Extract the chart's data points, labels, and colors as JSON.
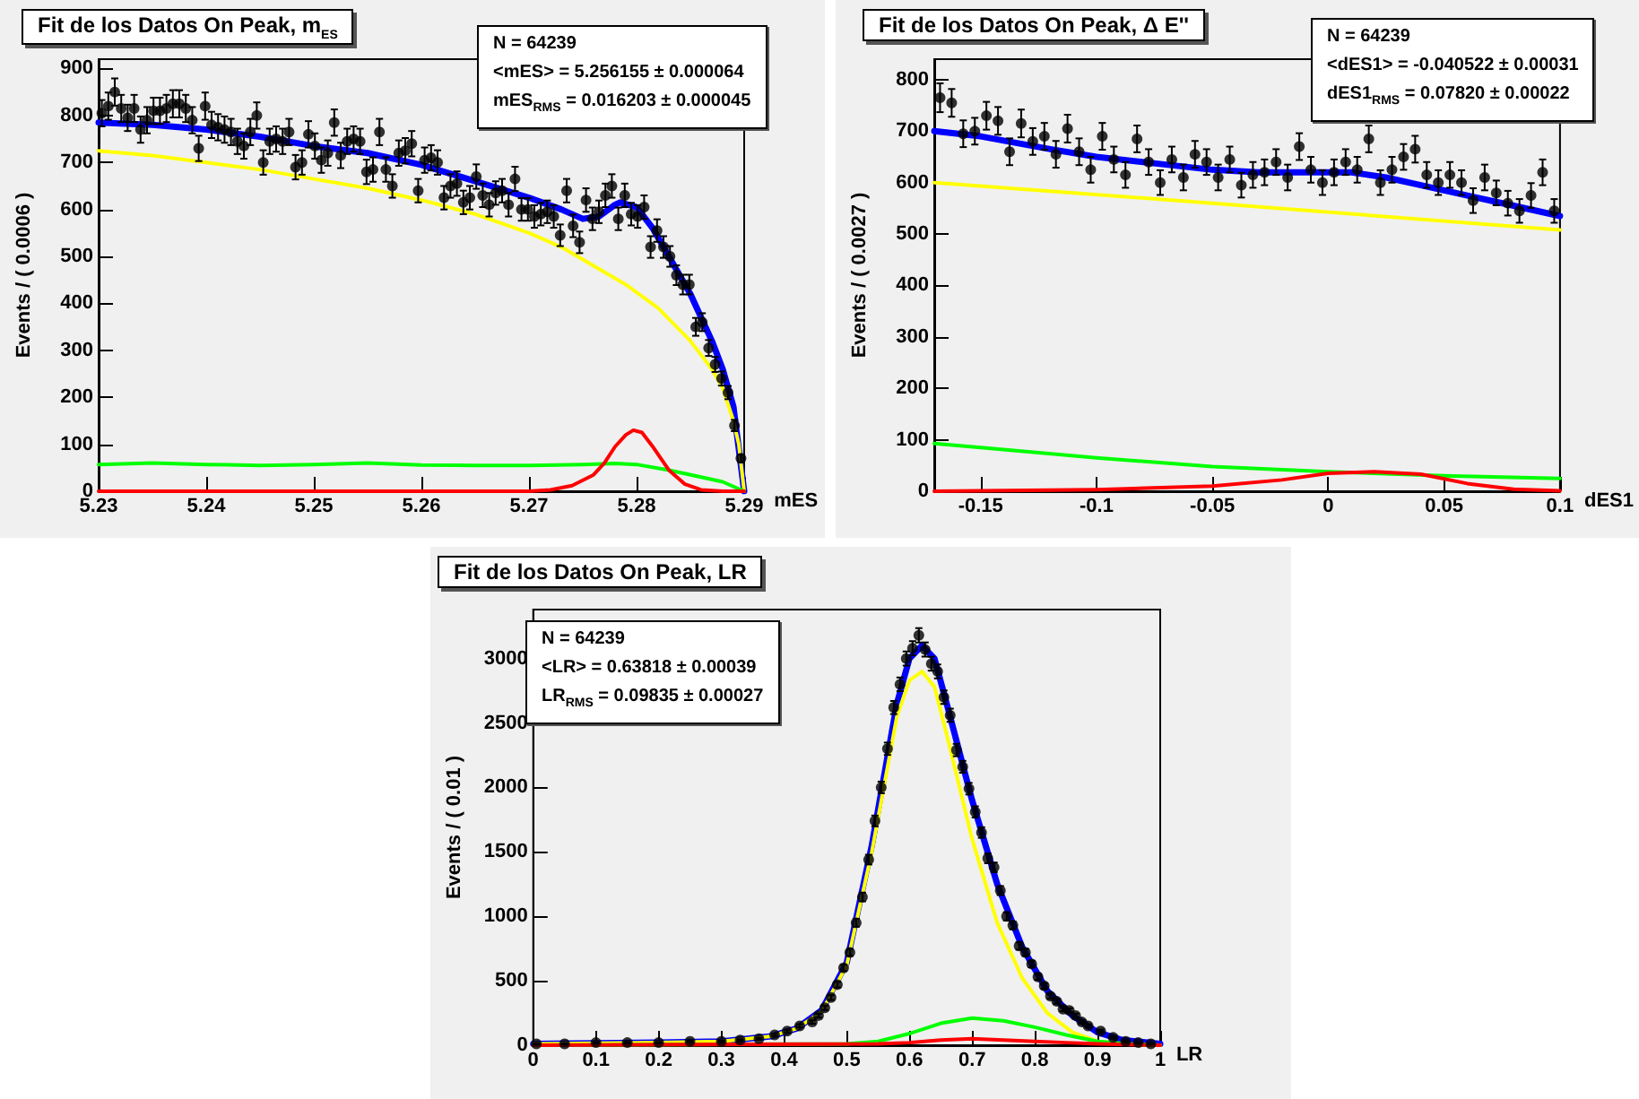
{
  "chart_data": [
    {
      "type": "scatter",
      "title": "Fit de los Datos On Peak, m$_{ES}$",
      "xlabel": "mES",
      "ylabel": "Events / ( 0.0006 )",
      "annotations": [
        "N =  64239",
        "<mES> =  5.256155 ± 0.000064",
        "mES$_{RMS}$ =  0.016203 ± 0.000045"
      ],
      "xlim": [
        5.23,
        5.29
      ],
      "ylim": [
        0,
        920
      ],
      "xticks": [
        5.23,
        5.24,
        5.25,
        5.26,
        5.27,
        5.28,
        5.29
      ],
      "yticks": [
        0,
        100,
        200,
        300,
        400,
        500,
        600,
        700,
        800,
        900
      ],
      "line_style": "solid",
      "series": [
        {
          "marker": "circle",
          "color": "#000000",
          "x": [
            5.2303,
            5.2309,
            5.2315,
            5.2321,
            5.2327,
            5.2333,
            5.2339,
            5.2345,
            5.2351,
            5.2357,
            5.2363,
            5.2369,
            5.2375,
            5.2381,
            5.2387,
            5.2393,
            5.2399,
            5.2405,
            5.2411,
            5.2417,
            5.2423,
            5.2429,
            5.2435,
            5.2441,
            5.2447,
            5.2453,
            5.2459,
            5.2465,
            5.2471,
            5.2477,
            5.2483,
            5.2489,
            5.2495,
            5.2501,
            5.2507,
            5.2513,
            5.2519,
            5.2525,
            5.2531,
            5.2537,
            5.2543,
            5.2549,
            5.2555,
            5.2561,
            5.2567,
            5.2573,
            5.2579,
            5.2585,
            5.2591,
            5.2597,
            5.2603,
            5.2609,
            5.2615,
            5.2621,
            5.2627,
            5.2633,
            5.2639,
            5.2645,
            5.2651,
            5.2657,
            5.2663,
            5.2669,
            5.2675,
            5.2681,
            5.2687,
            5.2693,
            5.2699,
            5.2705,
            5.2711,
            5.2717,
            5.2723,
            5.2729,
            5.2735,
            5.2741,
            5.2747,
            5.2753,
            5.2759,
            5.2765,
            5.2771,
            5.2777,
            5.2783,
            5.2789,
            5.2795,
            5.2801,
            5.2807,
            5.2813,
            5.2819,
            5.2825,
            5.2831,
            5.2837,
            5.2843,
            5.2849,
            5.2855,
            5.2861,
            5.2867,
            5.2873,
            5.2879,
            5.2885,
            5.2891,
            5.2897
          ],
          "values": [
            805,
            820,
            850,
            815,
            795,
            815,
            770,
            790,
            810,
            810,
            815,
            825,
            825,
            815,
            790,
            730,
            820,
            780,
            775,
            770,
            765,
            745,
            735,
            765,
            800,
            700,
            745,
            750,
            745,
            765,
            690,
            700,
            760,
            735,
            705,
            720,
            785,
            715,
            745,
            750,
            745,
            680,
            685,
            765,
            685,
            650,
            720,
            725,
            740,
            640,
            705,
            710,
            700,
            625,
            650,
            655,
            615,
            625,
            670,
            630,
            610,
            635,
            640,
            610,
            665,
            600,
            600,
            585,
            590,
            595,
            585,
            545,
            640,
            565,
            530,
            620,
            580,
            595,
            630,
            650,
            580,
            630,
            590,
            585,
            605,
            520,
            555,
            520,
            500,
            460,
            440,
            440,
            350,
            360,
            305,
            270,
            240,
            210,
            140,
            70
          ],
          "errors": [
            28,
            29,
            29,
            29,
            28,
            29,
            28,
            28,
            28,
            28,
            29,
            29,
            29,
            29,
            28,
            27,
            29,
            28,
            28,
            28,
            28,
            27,
            27,
            28,
            28,
            26,
            27,
            27,
            27,
            28,
            26,
            26,
            28,
            27,
            27,
            27,
            28,
            27,
            27,
            27,
            27,
            26,
            26,
            28,
            26,
            25,
            27,
            27,
            27,
            25,
            27,
            27,
            26,
            25,
            25,
            26,
            25,
            25,
            26,
            25,
            25,
            25,
            25,
            25,
            26,
            24,
            24,
            24,
            24,
            24,
            24,
            23,
            25,
            24,
            23,
            25,
            24,
            24,
            25,
            25,
            24,
            25,
            24,
            24,
            25,
            23,
            24,
            23,
            22,
            21,
            21,
            21,
            19,
            19,
            17,
            16,
            15,
            14,
            12,
            8
          ]
        },
        {
          "type": "line",
          "color": "#ff0000",
          "x": [
            5.23,
            5.27,
            5.272,
            5.274,
            5.276,
            5.277,
            5.278,
            5.279,
            5.2797,
            5.2805,
            5.2815,
            5.283,
            5.2845,
            5.286,
            5.288,
            5.29
          ],
          "values": [
            0,
            0,
            3,
            12,
            35,
            60,
            95,
            120,
            130,
            125,
            95,
            45,
            15,
            3,
            0,
            0
          ]
        },
        {
          "type": "line",
          "color": "#00ff00",
          "x": [
            5.23,
            5.235,
            5.24,
            5.245,
            5.25,
            5.255,
            5.26,
            5.265,
            5.27,
            5.275,
            5.278,
            5.28,
            5.283,
            5.286,
            5.288,
            5.29
          ],
          "values": [
            57,
            60,
            57,
            55,
            57,
            60,
            56,
            55,
            55,
            57,
            59,
            57,
            45,
            30,
            20,
            0
          ]
        },
        {
          "type": "line",
          "color": "#ffff00",
          "x": [
            5.23,
            5.235,
            5.24,
            5.245,
            5.25,
            5.255,
            5.26,
            5.265,
            5.27,
            5.273,
            5.276,
            5.279,
            5.282,
            5.285,
            5.287,
            5.288,
            5.289,
            5.2895,
            5.29
          ],
          "values": [
            725,
            715,
            700,
            685,
            665,
            645,
            620,
            590,
            550,
            520,
            480,
            440,
            390,
            320,
            260,
            220,
            150,
            100,
            0
          ]
        },
        {
          "type": "line",
          "color": "#0000ff",
          "x": [
            5.23,
            5.235,
            5.24,
            5.245,
            5.25,
            5.255,
            5.26,
            5.265,
            5.27,
            5.273,
            5.275,
            5.2765,
            5.278,
            5.2785,
            5.28,
            5.2815,
            5.283,
            5.285,
            5.287,
            5.288,
            5.289,
            5.29
          ],
          "values": [
            785,
            780,
            770,
            755,
            735,
            720,
            695,
            660,
            625,
            600,
            580,
            585,
            610,
            615,
            605,
            560,
            500,
            420,
            320,
            260,
            180,
            0
          ]
        }
      ]
    },
    {
      "type": "scatter",
      "title": "Fit de los Datos On Peak, Δ E''",
      "xlabel": "dES1",
      "ylabel": "Events / ( 0.0027 )",
      "annotations": [
        "N =  64239",
        "<dES1> = -0.040522 ± 0.00031",
        "dES1$_{RMS}$ =  0.07820 ± 0.00022"
      ],
      "xlim": [
        -0.17,
        0.1
      ],
      "ylim": [
        0,
        840
      ],
      "xticks": [
        -0.15,
        -0.1,
        -0.05,
        0,
        0.05,
        0.1
      ],
      "yticks": [
        0,
        100,
        200,
        300,
        400,
        500,
        600,
        700,
        800
      ],
      "line_style": "solid",
      "series": [
        {
          "marker": "circle",
          "color": "#000000",
          "x": [
            -0.1675,
            -0.1625,
            -0.1575,
            -0.1525,
            -0.1475,
            -0.1425,
            -0.1375,
            -0.1325,
            -0.1275,
            -0.1225,
            -0.1175,
            -0.1125,
            -0.1075,
            -0.1025,
            -0.0975,
            -0.0925,
            -0.0875,
            -0.0825,
            -0.0775,
            -0.0725,
            -0.0675,
            -0.0625,
            -0.0575,
            -0.0525,
            -0.0475,
            -0.0425,
            -0.0375,
            -0.0325,
            -0.0275,
            -0.0225,
            -0.0175,
            -0.0125,
            -0.0075,
            -0.0025,
            0.0025,
            0.0075,
            0.0125,
            0.0175,
            0.0225,
            0.0275,
            0.0325,
            0.0375,
            0.0425,
            0.0475,
            0.0525,
            0.0575,
            0.0625,
            0.0675,
            0.0725,
            0.0775,
            0.0825,
            0.0875,
            0.0925,
            0.0975
          ],
          "values": [
            765,
            755,
            695,
            700,
            730,
            720,
            660,
            715,
            680,
            690,
            655,
            705,
            660,
            625,
            690,
            645,
            615,
            685,
            640,
            600,
            645,
            610,
            655,
            640,
            610,
            645,
            595,
            615,
            620,
            640,
            610,
            670,
            625,
            600,
            620,
            640,
            625,
            685,
            600,
            625,
            650,
            665,
            615,
            600,
            615,
            600,
            565,
            610,
            580,
            560,
            545,
            575,
            620,
            545
          ],
          "errors": [
            28,
            27,
            26,
            26,
            27,
            27,
            26,
            27,
            26,
            26,
            26,
            27,
            26,
            25,
            26,
            25,
            25,
            26,
            25,
            24,
            25,
            25,
            26,
            25,
            25,
            25,
            24,
            25,
            25,
            25,
            25,
            26,
            25,
            24,
            25,
            25,
            25,
            26,
            24,
            25,
            25,
            26,
            25,
            24,
            25,
            24,
            24,
            25,
            24,
            24,
            23,
            24,
            25,
            23
          ]
        },
        {
          "type": "line",
          "color": "#ff0000",
          "x": [
            -0.17,
            -0.1,
            -0.05,
            -0.02,
            0,
            0.02,
            0.04,
            0.06,
            0.08,
            0.1
          ],
          "values": [
            0,
            3,
            10,
            22,
            35,
            38,
            33,
            15,
            4,
            1
          ]
        },
        {
          "type": "line",
          "color": "#00ff00",
          "x": [
            -0.17,
            -0.15,
            -0.1,
            -0.05,
            0,
            0.05,
            0.1
          ],
          "values": [
            93,
            85,
            65,
            48,
            38,
            30,
            25
          ]
        },
        {
          "type": "line",
          "color": "#ffff00",
          "x": [
            -0.17,
            -0.05,
            0.1
          ],
          "values": [
            600,
            560,
            508
          ]
        },
        {
          "type": "line",
          "color": "#0000ff",
          "x": [
            -0.17,
            -0.15,
            -0.12,
            -0.1,
            -0.07,
            -0.05,
            -0.03,
            -0.01,
            0.01,
            0.025,
            0.04,
            0.06,
            0.08,
            0.1
          ],
          "values": [
            700,
            690,
            665,
            650,
            635,
            625,
            620,
            620,
            620,
            610,
            595,
            575,
            555,
            535
          ]
        }
      ]
    },
    {
      "type": "scatter",
      "title": "Fit de los Datos On Peak, LR",
      "xlabel": "LR",
      "ylabel": "Events / ( 0.01 )",
      "annotations": [
        "N =  64239",
        "<LR> =  0.63818 ± 0.00039",
        "LR$_{RMS}$ =  0.09835 ± 0.00027"
      ],
      "xlim": [
        0,
        1
      ],
      "ylim": [
        0,
        3380
      ],
      "xticks": [
        0,
        0.1,
        0.2,
        0.3,
        0.4,
        0.5,
        0.6,
        0.7,
        0.8,
        0.9,
        1
      ],
      "yticks": [
        0,
        500,
        1000,
        1500,
        2000,
        2500,
        3000
      ],
      "line_style": "solid",
      "series": [
        {
          "marker": "circle",
          "color": "#000000",
          "x": [
            0.005,
            0.05,
            0.1,
            0.15,
            0.2,
            0.25,
            0.3,
            0.33,
            0.36,
            0.385,
            0.405,
            0.425,
            0.445,
            0.455,
            0.465,
            0.475,
            0.485,
            0.495,
            0.505,
            0.515,
            0.525,
            0.535,
            0.545,
            0.555,
            0.565,
            0.575,
            0.585,
            0.595,
            0.605,
            0.615,
            0.625,
            0.635,
            0.645,
            0.655,
            0.665,
            0.675,
            0.685,
            0.695,
            0.705,
            0.715,
            0.725,
            0.735,
            0.745,
            0.755,
            0.765,
            0.775,
            0.785,
            0.795,
            0.805,
            0.815,
            0.825,
            0.835,
            0.845,
            0.855,
            0.865,
            0.875,
            0.885,
            0.905,
            0.925,
            0.945,
            0.965,
            0.985
          ],
          "values": [
            10,
            10,
            20,
            20,
            20,
            30,
            30,
            40,
            50,
            80,
            110,
            150,
            180,
            230,
            290,
            370,
            470,
            600,
            720,
            950,
            1150,
            1440,
            1740,
            2000,
            2300,
            2620,
            2800,
            3000,
            3080,
            3180,
            3070,
            2960,
            2900,
            2700,
            2560,
            2290,
            2160,
            1990,
            1810,
            1650,
            1450,
            1380,
            1200,
            1000,
            930,
            770,
            720,
            630,
            530,
            460,
            380,
            340,
            280,
            270,
            230,
            180,
            150,
            110,
            60,
            30,
            20,
            10
          ],
          "errors": [
            3,
            3,
            4,
            4,
            4,
            5,
            5,
            6,
            7,
            9,
            10,
            12,
            13,
            15,
            17,
            19,
            22,
            24,
            27,
            31,
            34,
            38,
            42,
            45,
            48,
            51,
            53,
            55,
            55,
            56,
            55,
            54,
            54,
            52,
            51,
            48,
            46,
            45,
            43,
            41,
            38,
            37,
            35,
            32,
            30,
            28,
            27,
            25,
            23,
            21,
            19,
            18,
            17,
            16,
            15,
            13,
            12,
            10,
            8,
            5,
            4,
            3
          ]
        },
        {
          "type": "line",
          "color": "#ff0000",
          "x": [
            0,
            0.55,
            0.6,
            0.65,
            0.7,
            0.75,
            0.8,
            0.85,
            0.9,
            1
          ],
          "values": [
            0,
            10,
            20,
            40,
            50,
            40,
            30,
            20,
            10,
            0
          ]
        },
        {
          "type": "line",
          "color": "#00ff00",
          "x": [
            0,
            0.5,
            0.55,
            0.6,
            0.65,
            0.7,
            0.75,
            0.8,
            0.85,
            0.9,
            0.95,
            1
          ],
          "values": [
            0,
            10,
            30,
            90,
            170,
            210,
            190,
            140,
            80,
            30,
            10,
            0
          ]
        },
        {
          "type": "line",
          "color": "#ffff00",
          "x": [
            0,
            0.2,
            0.3,
            0.38,
            0.42,
            0.46,
            0.5,
            0.54,
            0.58,
            0.6,
            0.62,
            0.64,
            0.66,
            0.7,
            0.74,
            0.78,
            0.82,
            0.86,
            0.9,
            0.94,
            1
          ],
          "values": [
            10,
            20,
            30,
            70,
            130,
            260,
            620,
            1500,
            2550,
            2830,
            2900,
            2780,
            2400,
            1600,
            950,
            520,
            250,
            100,
            30,
            10,
            0
          ]
        },
        {
          "type": "line",
          "color": "#0000ff",
          "x": [
            0,
            0.2,
            0.3,
            0.38,
            0.42,
            0.46,
            0.5,
            0.54,
            0.58,
            0.6,
            0.62,
            0.64,
            0.66,
            0.7,
            0.74,
            0.78,
            0.82,
            0.86,
            0.9,
            0.94,
            1
          ],
          "values": [
            10,
            20,
            30,
            70,
            130,
            270,
            640,
            1550,
            2650,
            3000,
            3100,
            3000,
            2640,
            1900,
            1250,
            760,
            420,
            230,
            100,
            40,
            10
          ]
        }
      ]
    }
  ]
}
